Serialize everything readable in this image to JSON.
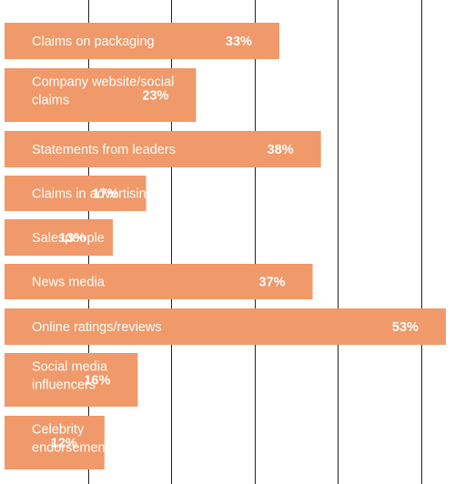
{
  "chart_data": {
    "type": "bar",
    "orientation": "horizontal",
    "categories": [
      "Claims on packaging",
      "Company website/social claims",
      "Statements from leaders",
      "Claims in advertising",
      "Salespeople",
      "News media",
      "Online ratings/reviews",
      "Social media influencers",
      "Celebrity endorsement"
    ],
    "values": [
      33,
      23,
      38,
      17,
      13,
      37,
      53,
      16,
      12
    ],
    "value_labels": [
      "33%",
      "23%",
      "38%",
      "17%",
      "13%",
      "37%",
      "53%",
      "16%",
      "12%"
    ],
    "xlim": [
      0,
      55
    ],
    "gridlines_at": [
      10,
      20,
      30,
      40,
      50
    ],
    "grid": true,
    "bar_color": "#F0996A",
    "gridline_color": "#222222"
  }
}
